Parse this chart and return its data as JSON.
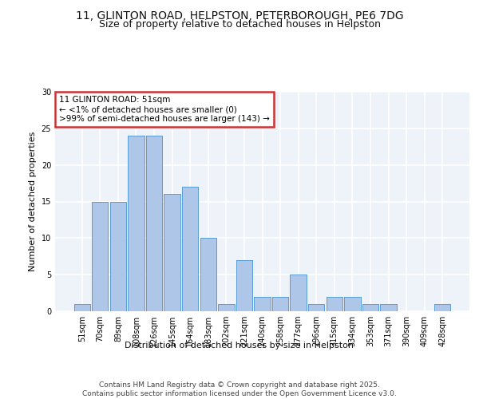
{
  "title_line1": "11, GLINTON ROAD, HELPSTON, PETERBOROUGH, PE6 7DG",
  "title_line2": "Size of property relative to detached houses in Helpston",
  "xlabel": "Distribution of detached houses by size in Helpston",
  "ylabel": "Number of detached properties",
  "categories": [
    "51sqm",
    "70sqm",
    "89sqm",
    "108sqm",
    "126sqm",
    "145sqm",
    "164sqm",
    "183sqm",
    "202sqm",
    "221sqm",
    "240sqm",
    "258sqm",
    "277sqm",
    "296sqm",
    "315sqm",
    "334sqm",
    "353sqm",
    "371sqm",
    "390sqm",
    "409sqm",
    "428sqm"
  ],
  "values": [
    1,
    15,
    15,
    24,
    24,
    16,
    17,
    10,
    1,
    7,
    2,
    2,
    5,
    1,
    2,
    2,
    1,
    1,
    0,
    0,
    1
  ],
  "bar_color": "#aec6e8",
  "bar_edge_color": "#5a9fd4",
  "annotation_box_text": "11 GLINTON ROAD: 51sqm\n← <1% of detached houses are smaller (0)\n>99% of semi-detached houses are larger (143) →",
  "annotation_box_color": "#cc3333",
  "ylim": [
    0,
    30
  ],
  "yticks": [
    0,
    5,
    10,
    15,
    20,
    25,
    30
  ],
  "footer_text": "Contains HM Land Registry data © Crown copyright and database right 2025.\nContains public sector information licensed under the Open Government Licence v3.0.",
  "bg_color": "#eef2f9",
  "grid_color": "#ffffff",
  "title_fontsize": 10,
  "subtitle_fontsize": 9,
  "axis_label_fontsize": 8,
  "tick_fontsize": 7,
  "annotation_fontsize": 7.5,
  "footer_fontsize": 6.5
}
